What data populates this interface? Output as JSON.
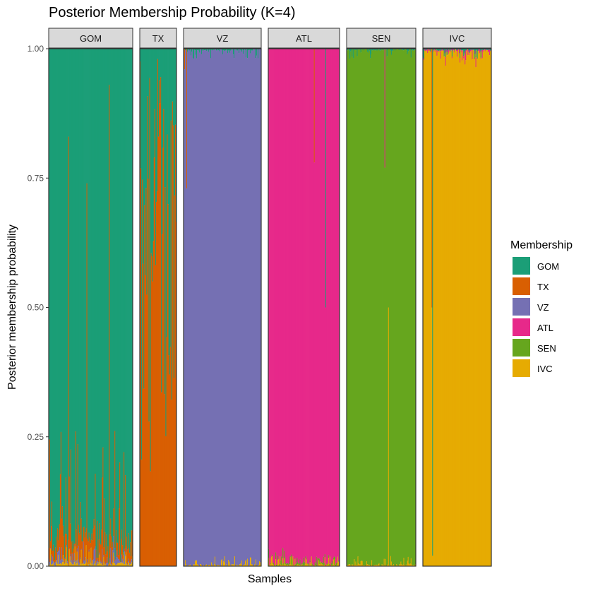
{
  "chart_data": {
    "type": "bar",
    "title": "Posterior Membership Probability (K=4)",
    "xlabel": "Samples",
    "ylabel": "Posterior membership probability",
    "ylim": [
      0,
      1
    ],
    "yticks": [
      "0.00",
      "0.25",
      "0.50",
      "0.75",
      "1.00"
    ],
    "ytick_values": [
      0,
      0.25,
      0.5,
      0.75,
      1
    ],
    "grid": false,
    "legend_title": "Membership",
    "legend_position": "right",
    "series": [
      {
        "name": "GOM",
        "color": "#1B9E77"
      },
      {
        "name": "TX",
        "color": "#D95F02"
      },
      {
        "name": "VZ",
        "color": "#7570B3"
      },
      {
        "name": "ATL",
        "color": "#E7298A"
      },
      {
        "name": "SEN",
        "color": "#66A61E"
      },
      {
        "name": "IVC",
        "color": "#E6AB02"
      }
    ],
    "facets": [
      {
        "label": "GOM",
        "n_samples": 120,
        "dominant": "GOM",
        "typical_membership": {
          "GOM": 0.9,
          "TX": 0.08,
          "VZ": 0.01,
          "IVC": 0.01
        },
        "notable_samples": [
          {
            "position": 0.24,
            "membership": {
              "GOM": 0.17,
              "TX": 0.83
            }
          },
          {
            "position": 0.72,
            "membership": {
              "GOM": 0.07,
              "TX": 0.93
            }
          },
          {
            "position": 0.45,
            "membership": {
              "GOM": 0.26,
              "TX": 0.74
            }
          }
        ]
      },
      {
        "label": "TX",
        "n_samples": 50,
        "dominant": "TX",
        "typical_membership": {
          "GOM": 0.45,
          "TX": 0.55
        },
        "notable_samples": [
          {
            "position": 0.5,
            "membership": {
              "GOM": 0.17,
              "TX": 0.83
            }
          }
        ]
      },
      {
        "label": "VZ",
        "n_samples": 110,
        "dominant": "VZ",
        "typical_membership": {
          "VZ": 0.99,
          "GOM": 0.005,
          "IVC": 0.005
        },
        "notable_samples": [
          {
            "position": 0.01,
            "membership": {
              "VZ": 0.96,
              "TX": 0.04
            }
          },
          {
            "position": 0.04,
            "membership": {
              "VZ": 0.73,
              "TX": 0.27
            }
          }
        ]
      },
      {
        "label": "ATL",
        "n_samples": 100,
        "dominant": "ATL",
        "typical_membership": {
          "ATL": 0.99,
          "SEN": 0.005,
          "IVC": 0.005
        },
        "notable_samples": [
          {
            "position": 0.8,
            "membership": {
              "ATL": 0.5,
              "GOM": 0.5
            }
          },
          {
            "position": 0.64,
            "membership": {
              "ATL": 0.78,
              "TX": 0.22
            }
          }
        ]
      },
      {
        "label": "SEN",
        "n_samples": 95,
        "dominant": "SEN",
        "typical_membership": {
          "SEN": 0.99,
          "GOM": 0.005,
          "IVC": 0.005
        },
        "notable_samples": [
          {
            "position": 0.6,
            "membership": {
              "SEN": 0.5,
              "IVC": 0.5
            }
          },
          {
            "position": 0.55,
            "membership": {
              "SEN": 0.77,
              "ATL": 0.23
            }
          }
        ]
      },
      {
        "label": "IVC",
        "n_samples": 95,
        "dominant": "IVC",
        "typical_membership": {
          "IVC": 0.99,
          "GOM": 0.005,
          "ATL": 0.005
        },
        "notable_samples": [
          {
            "position": 0.13,
            "membership": {
              "IVC": 0.5,
              "TX": 0.5
            }
          },
          {
            "position": 0.14,
            "membership": {
              "IVC": 0.02,
              "GOM": 0.98
            }
          }
        ]
      }
    ]
  }
}
